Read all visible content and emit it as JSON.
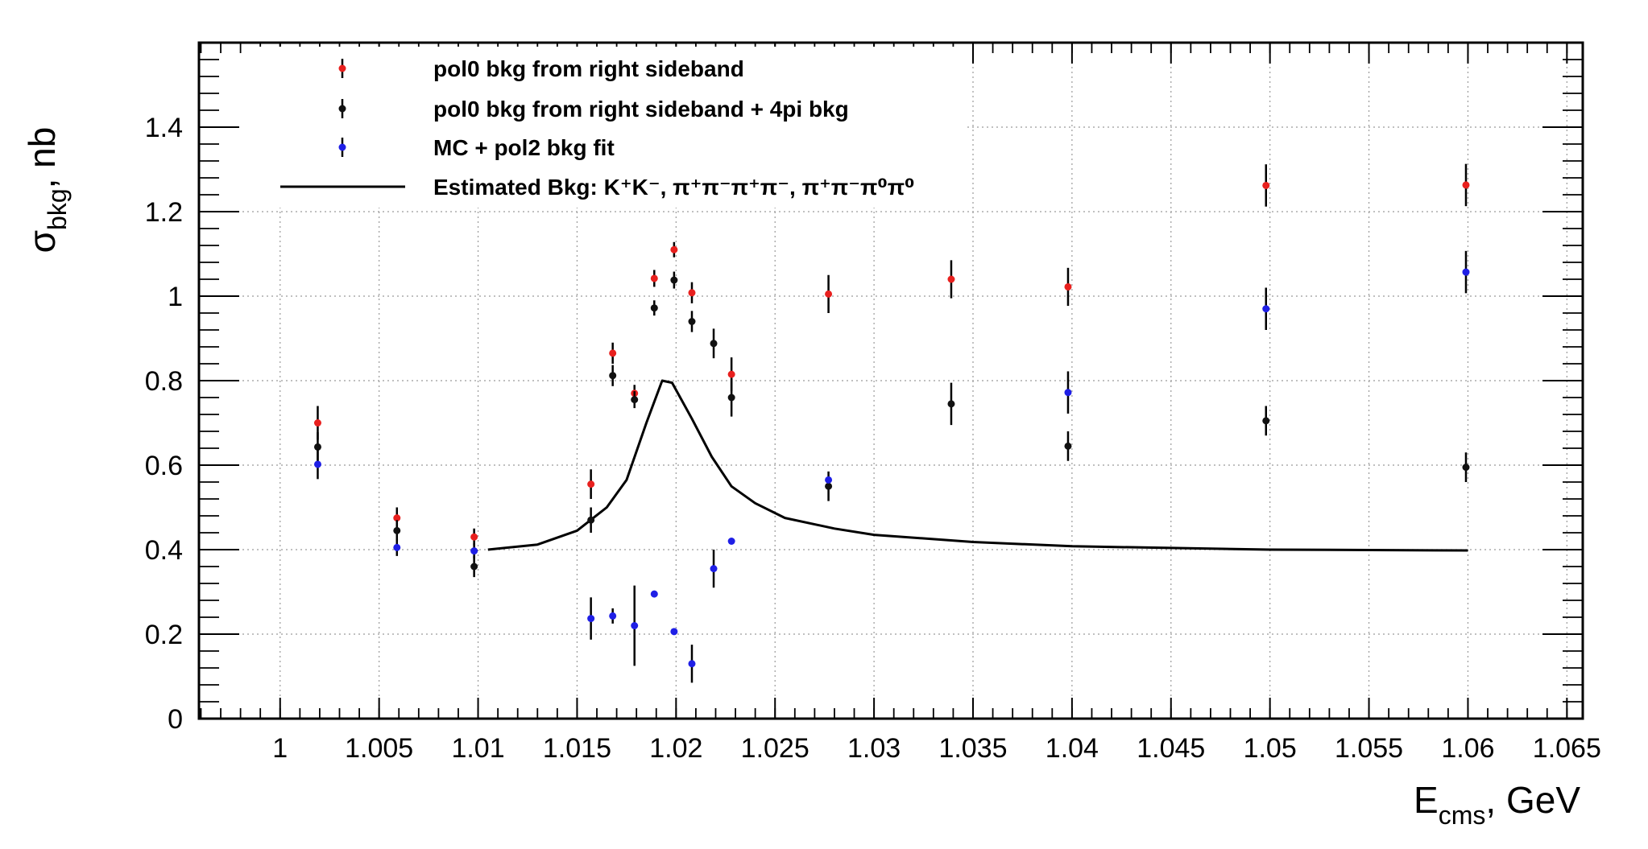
{
  "chart_data": {
    "type": "scatter",
    "title": "",
    "xlabel": {
      "main": "E",
      "sub": "cms",
      "rest": ", GeV"
    },
    "ylabel": {
      "main": "σ",
      "sub": "bkg",
      "rest": ", nb"
    },
    "xlim": [
      0.9959,
      1.0658
    ],
    "ylim": [
      0,
      1.6
    ],
    "grid": true,
    "legend_position": "top-left",
    "x_ticks": [
      {
        "value": 1.0,
        "label": "1"
      },
      {
        "value": 1.005,
        "label": "1.005"
      },
      {
        "value": 1.01,
        "label": "1.01"
      },
      {
        "value": 1.015,
        "label": "1.015"
      },
      {
        "value": 1.02,
        "label": "1.02"
      },
      {
        "value": 1.025,
        "label": "1.025"
      },
      {
        "value": 1.03,
        "label": "1.03"
      },
      {
        "value": 1.035,
        "label": "1.035"
      },
      {
        "value": 1.04,
        "label": "1.04"
      },
      {
        "value": 1.045,
        "label": "1.045"
      },
      {
        "value": 1.05,
        "label": "1.05"
      },
      {
        "value": 1.055,
        "label": "1.055"
      },
      {
        "value": 1.06,
        "label": "1.06"
      },
      {
        "value": 1.065,
        "label": "1.065"
      }
    ],
    "y_ticks": [
      {
        "value": 0,
        "label": "0"
      },
      {
        "value": 0.2,
        "label": "0.2"
      },
      {
        "value": 0.4,
        "label": "0.4"
      },
      {
        "value": 0.6,
        "label": "0.6"
      },
      {
        "value": 0.8,
        "label": "0.8"
      },
      {
        "value": 1.0,
        "label": "1"
      },
      {
        "value": 1.2,
        "label": "1.2"
      },
      {
        "value": 1.4,
        "label": "1.4"
      }
    ],
    "series": [
      {
        "name": "pol0 bkg from right sideband",
        "kind": "points",
        "color": "#e8201e",
        "points": [
          {
            "x": 1.0019,
            "y": 0.7,
            "err": 0.04
          },
          {
            "x": 1.0059,
            "y": 0.475,
            "err": 0.025
          },
          {
            "x": 1.0098,
            "y": 0.43,
            "err": 0.02
          },
          {
            "x": 1.0157,
            "y": 0.555,
            "err": 0.035
          },
          {
            "x": 1.0168,
            "y": 0.865,
            "err": 0.025
          },
          {
            "x": 1.0179,
            "y": 0.77,
            "err": 0.02
          },
          {
            "x": 1.0189,
            "y": 1.042,
            "err": 0.02
          },
          {
            "x": 1.0199,
            "y": 1.11,
            "err": 0.018
          },
          {
            "x": 1.0208,
            "y": 1.008,
            "err": 0.025
          },
          {
            "x": 1.0228,
            "y": 0.815,
            "err": 0.04
          },
          {
            "x": 1.0277,
            "y": 1.005,
            "err": 0.045
          },
          {
            "x": 1.0339,
            "y": 1.04,
            "err": 0.045
          },
          {
            "x": 1.0398,
            "y": 1.022,
            "err": 0.045
          },
          {
            "x": 1.0498,
            "y": 1.262,
            "err": 0.05
          },
          {
            "x": 1.0599,
            "y": 1.263,
            "err": 0.05
          }
        ]
      },
      {
        "name": "pol0 bkg from right sideband + 4pi bkg",
        "kind": "points",
        "color": "#111111",
        "points": [
          {
            "x": 1.0019,
            "y": 0.643,
            "err": 0.035
          },
          {
            "x": 1.0059,
            "y": 0.445,
            "err": 0.025
          },
          {
            "x": 1.0098,
            "y": 0.36,
            "err": 0.025
          },
          {
            "x": 1.0157,
            "y": 0.47,
            "err": 0.03
          },
          {
            "x": 1.0168,
            "y": 0.812,
            "err": 0.025
          },
          {
            "x": 1.0179,
            "y": 0.755,
            "err": 0.02
          },
          {
            "x": 1.0189,
            "y": 0.972,
            "err": 0.018
          },
          {
            "x": 1.0199,
            "y": 1.038,
            "err": 0.02
          },
          {
            "x": 1.0208,
            "y": 0.94,
            "err": 0.025
          },
          {
            "x": 1.0219,
            "y": 0.888,
            "err": 0.035
          },
          {
            "x": 1.0228,
            "y": 0.76,
            "err": 0.045
          },
          {
            "x": 1.0277,
            "y": 0.55,
            "err": 0.035
          },
          {
            "x": 1.0339,
            "y": 0.745,
            "err": 0.05
          },
          {
            "x": 1.0398,
            "y": 0.645,
            "err": 0.035
          },
          {
            "x": 1.0498,
            "y": 0.705,
            "err": 0.035
          },
          {
            "x": 1.0599,
            "y": 0.595,
            "err": 0.035
          }
        ]
      },
      {
        "name": "MC + pol2 bkg fit",
        "kind": "points",
        "color": "#1f1fe6",
        "points": [
          {
            "x": 1.0019,
            "y": 0.602,
            "err": 0.035
          },
          {
            "x": 1.0059,
            "y": 0.405,
            "err": 0.02
          },
          {
            "x": 1.0098,
            "y": 0.397,
            "err": 0.018
          },
          {
            "x": 1.0157,
            "y": 0.237,
            "err": 0.05
          },
          {
            "x": 1.0168,
            "y": 0.243,
            "err": 0.018
          },
          {
            "x": 1.0179,
            "y": 0.22,
            "err": 0.095
          },
          {
            "x": 1.0189,
            "y": 0.295,
            "err": 0.005
          },
          {
            "x": 1.0199,
            "y": 0.206,
            "err": 0.005
          },
          {
            "x": 1.0208,
            "y": 0.13,
            "err": 0.045
          },
          {
            "x": 1.0219,
            "y": 0.355,
            "err": 0.045
          },
          {
            "x": 1.0228,
            "y": 0.42,
            "err": 0.005
          },
          {
            "x": 1.0277,
            "y": 0.565,
            "err": 0.005
          },
          {
            "x": 1.0398,
            "y": 0.772,
            "err": 0.05
          },
          {
            "x": 1.0498,
            "y": 0.97,
            "err": 0.05
          },
          {
            "x": 1.0599,
            "y": 1.057,
            "err": 0.05
          }
        ]
      },
      {
        "name": "Estimated Bkg: K⁺K⁻,  π⁺π⁻π⁺π⁻,  π⁺π⁻π⁰π⁰",
        "kind": "line",
        "color": "#000000",
        "points": [
          {
            "x": 1.0105,
            "y": 0.4
          },
          {
            "x": 1.013,
            "y": 0.412
          },
          {
            "x": 1.015,
            "y": 0.445
          },
          {
            "x": 1.0165,
            "y": 0.5
          },
          {
            "x": 1.0175,
            "y": 0.565
          },
          {
            "x": 1.0185,
            "y": 0.7
          },
          {
            "x": 1.0193,
            "y": 0.8
          },
          {
            "x": 1.0198,
            "y": 0.795
          },
          {
            "x": 1.0208,
            "y": 0.71
          },
          {
            "x": 1.0218,
            "y": 0.62
          },
          {
            "x": 1.0228,
            "y": 0.55
          },
          {
            "x": 1.024,
            "y": 0.51
          },
          {
            "x": 1.0255,
            "y": 0.475
          },
          {
            "x": 1.028,
            "y": 0.45
          },
          {
            "x": 1.03,
            "y": 0.435
          },
          {
            "x": 1.035,
            "y": 0.418
          },
          {
            "x": 1.04,
            "y": 0.408
          },
          {
            "x": 1.05,
            "y": 0.4
          },
          {
            "x": 1.06,
            "y": 0.398
          }
        ]
      }
    ]
  }
}
